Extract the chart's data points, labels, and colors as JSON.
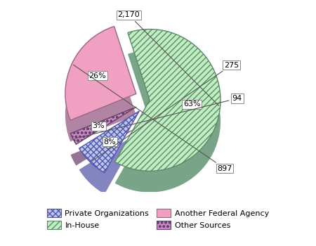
{
  "slices": [
    {
      "label": "In-House",
      "value": 2170,
      "pct": "63%",
      "count": "2,170",
      "color": "#c0eec0",
      "hatch": "////",
      "edge_color": "#5a8a6a",
      "shadow_color": "#6a9a7a",
      "explode": 0.0
    },
    {
      "label": "Private Organizations",
      "value": 275,
      "pct": "8%",
      "count": "275",
      "color": "#b8c8f0",
      "hatch": "xxxx",
      "edge_color": "#5555aa",
      "shadow_color": "#7777bb",
      "explode": 0.18
    },
    {
      "label": "Other Sources",
      "value": 94,
      "pct": "3%",
      "count": "94",
      "color": "#cc88cc",
      "hatch": "ooo",
      "edge_color": "#664466",
      "shadow_color": "#886688",
      "explode": 0.18
    },
    {
      "label": "Another Federal Agency",
      "value": 897,
      "pct": "26%",
      "count": "897",
      "color": "#f0a0c0",
      "hatch": "~~~",
      "edge_color": "#996688",
      "shadow_color": "#aa7799",
      "explode": 0.18
    }
  ],
  "startangle": 108,
  "counterclock": false,
  "shadow_depth": 0.08,
  "bg_color": "#ffffff",
  "label_fontsize": 8,
  "legend_fontsize": 8,
  "legend_labels": [
    "Private Organizations",
    "In-House",
    "Another Federal Agency",
    "Other Sources"
  ],
  "legend_colors": [
    "#b8c8f0",
    "#c0eec0",
    "#f0a0c0",
    "#cc88cc"
  ],
  "legend_hatch": [
    "xxxx",
    "////",
    "~~~",
    "ooo"
  ],
  "legend_edge": [
    "#5555aa",
    "#5a8a6a",
    "#996688",
    "#664466"
  ]
}
